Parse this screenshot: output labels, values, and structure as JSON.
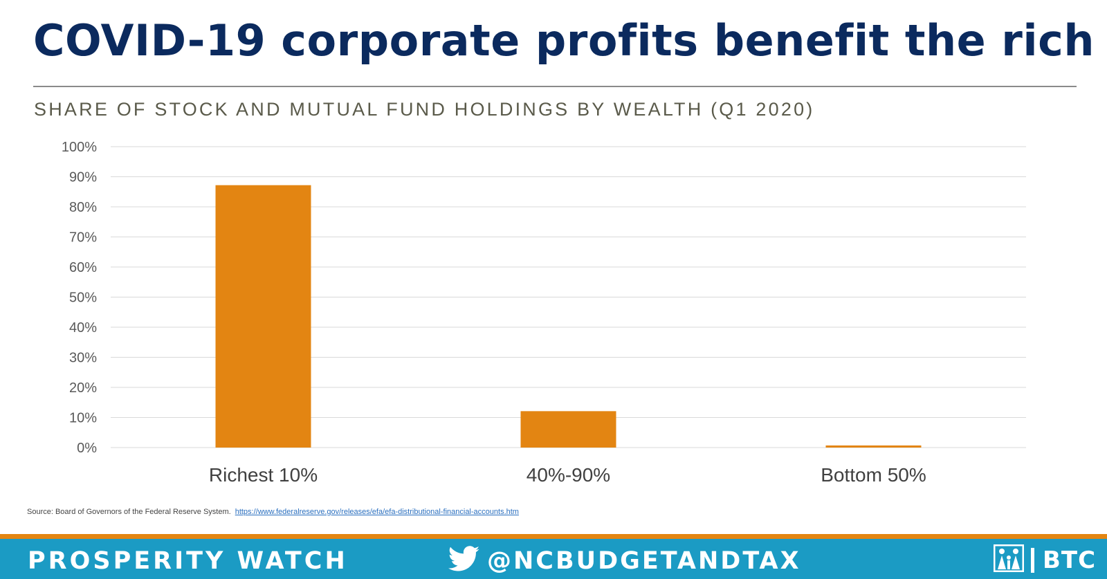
{
  "title": "COVID-19 corporate profits benefit the rich",
  "footer": {
    "left_text": "PROSPERITY WATCH",
    "twitter_handle": "@NCBUDGETANDTAX",
    "org": "BTC",
    "twitter_icon": "twitter-bird-icon",
    "logo_icon": "family-logo-icon"
  },
  "source": {
    "label": "Source: Board of Governors of the Federal Reserve System.",
    "link": "https://www.federalreserve.gov/releases/efa/efa-distributional-financial-accounts.htm"
  },
  "colors": {
    "title": "#0b2a5e",
    "bar": "#e38512",
    "footer_bg": "#1b9bc4",
    "footer_stripe": "#e38512",
    "grid": "#d9d9d9"
  },
  "chart_data": {
    "type": "bar",
    "title": "SHARE OF STOCK AND MUTUAL FUND HOLDINGS BY WEALTH (Q1 2020)",
    "categories": [
      "Richest 10%",
      "40%-90%",
      "Bottom 50%"
    ],
    "values": [
      87.2,
      12.1,
      0.7
    ],
    "unit": "%",
    "ylim": [
      0,
      100
    ],
    "yticks": [
      "0%",
      "10%",
      "20%",
      "30%",
      "40%",
      "50%",
      "60%",
      "70%",
      "80%",
      "90%",
      "100%"
    ],
    "grid": true,
    "legend": "none"
  }
}
